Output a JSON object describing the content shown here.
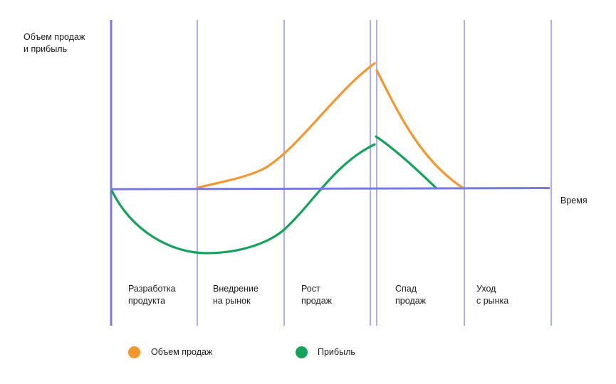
{
  "chart_data": {
    "type": "line",
    "ylabel": "Объем продаж\nи прибыль",
    "xlabel": "Время",
    "stages": [
      "Разработка\nпродукта",
      "Внедрение\nна рынок",
      "Рост\nпродаж",
      "Спад\nпродаж",
      "Уход\nс рынка"
    ],
    "series": [
      {
        "name": "Объем продаж",
        "color": "#f5962f"
      },
      {
        "name": "Прибыль",
        "color": "#15a25a"
      }
    ]
  },
  "colors": {
    "axis": "#7a79df",
    "divider": "#8c8ce0"
  }
}
